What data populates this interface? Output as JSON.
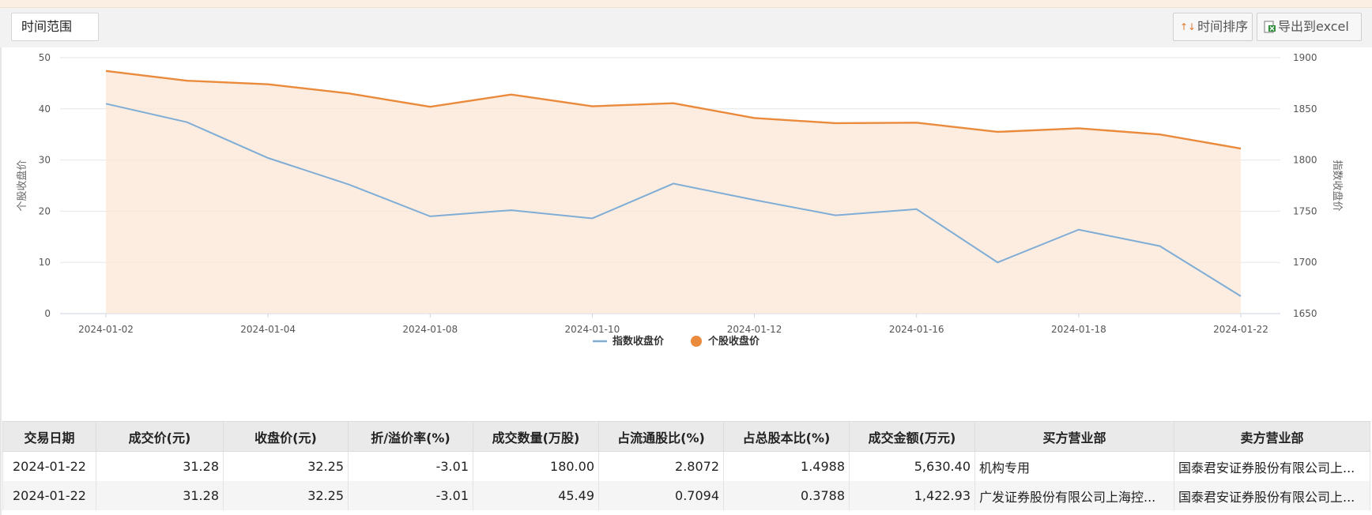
{
  "toolbar": {
    "range_label": "时间范围",
    "sort_label": "时间排序",
    "sort_icon": "sort-arrows-icon",
    "export_label": "导出到excel",
    "export_icon": "excel-icon"
  },
  "chart_data": {
    "type": "line",
    "x": [
      "2024-01-02",
      "2024-01-03",
      "2024-01-04",
      "2024-01-05",
      "2024-01-08",
      "2024-01-09",
      "2024-01-10",
      "2024-01-11",
      "2024-01-12",
      "2024-01-15",
      "2024-01-16",
      "2024-01-17",
      "2024-01-18",
      "2024-01-19",
      "2024-01-22"
    ],
    "x_tick_labels": [
      "2024-01-02",
      "2024-01-04",
      "2024-01-08",
      "2024-01-10",
      "2024-01-12",
      "2024-01-16",
      "2024-01-18",
      "2024-01-22"
    ],
    "ylabel": "个股收盘价",
    "y2label": "指数收盘价",
    "ylim": [
      0,
      50
    ],
    "y_ticks": [
      0,
      10,
      20,
      30,
      40,
      50
    ],
    "y2lim": [
      1650,
      1900
    ],
    "y2_ticks": [
      1650,
      1700,
      1750,
      1800,
      1850,
      1900
    ],
    "grid": true,
    "legend_position": "bottom-center",
    "series": [
      {
        "name": "指数收盘价",
        "axis": "right",
        "color": "#7fadd6",
        "style": "line",
        "values": [
          1855,
          1837,
          1802,
          1776,
          1745,
          1751,
          1743,
          1777,
          1761,
          1746,
          1752,
          1700,
          1732,
          1716,
          1667
        ]
      },
      {
        "name": "个股收盘价",
        "axis": "left",
        "color": "#ea8a3c",
        "style": "area",
        "values": [
          47.4,
          45.5,
          44.8,
          43.0,
          40.4,
          42.8,
          40.5,
          41.1,
          38.2,
          37.2,
          37.3,
          35.5,
          36.2,
          35.0,
          32.25
        ]
      }
    ]
  },
  "table": {
    "headers": [
      "交易日期",
      "成交价(元)",
      "收盘价(元)",
      "折/溢价率(%)",
      "成交数量(万股)",
      "占流通股比(%)",
      "占总股本比(%)",
      "成交金额(万元)",
      "买方营业部",
      "卖方营业部"
    ],
    "rows": [
      [
        "2024-01-22",
        "31.28",
        "32.25",
        "-3.01",
        "180.00",
        "2.8072",
        "1.4988",
        "5,630.40",
        "机构专用",
        "国泰君安证券股份有限公司上..."
      ],
      [
        "2024-01-22",
        "31.28",
        "32.25",
        "-3.01",
        "45.49",
        "0.7094",
        "0.3788",
        "1,422.93",
        "广发证券股份有限公司上海控...",
        "国泰君安证券股份有限公司上..."
      ]
    ]
  }
}
